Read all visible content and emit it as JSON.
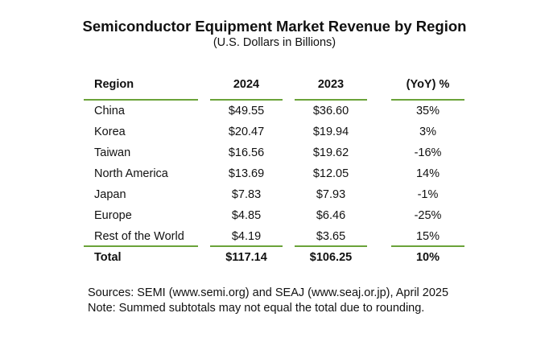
{
  "title": "Semiconductor Equipment Market Revenue by Region",
  "subtitle": "(U.S. Dollars in Billions)",
  "colors": {
    "rule": "#6aa339"
  },
  "table": {
    "headers": [
      "Region",
      "2024",
      "2023",
      "(YoY) %"
    ],
    "rows": [
      [
        "China",
        "$49.55",
        "$36.60",
        "35%"
      ],
      [
        "Korea",
        "$20.47",
        "$19.94",
        "3%"
      ],
      [
        "Taiwan",
        "$16.56",
        "$19.62",
        "-16%"
      ],
      [
        "North America",
        "$13.69",
        "$12.05",
        "14%"
      ],
      [
        "Japan",
        "$7.83",
        "$7.93",
        "-1%"
      ],
      [
        "Europe",
        "$4.85",
        "$6.46",
        "-25%"
      ],
      [
        "Rest of the World",
        "$4.19",
        "$3.65",
        "15%"
      ]
    ],
    "total": [
      "Total",
      "$117.14",
      "$106.25",
      "10%"
    ]
  },
  "footer": {
    "sources": "Sources: SEMI (www.semi.org) and SEAJ (www.seaj.or.jp), April 2025",
    "note": "Note: Summed subtotals may not equal the total due to rounding."
  }
}
